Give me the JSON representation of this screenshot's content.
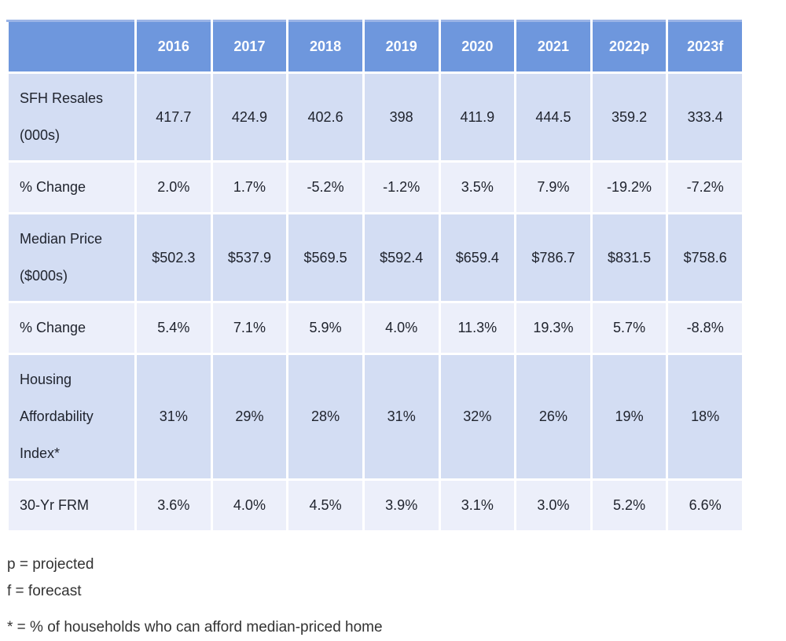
{
  "table": {
    "columns": [
      "",
      "2016",
      "2017",
      "2018",
      "2019",
      "2020",
      "2021",
      "2022p",
      "2023f"
    ],
    "rows": [
      {
        "label": "SFH Resales (000s)",
        "values": [
          "417.7",
          "424.9",
          "402.6",
          "398",
          "411.9",
          "444.5",
          "359.2",
          "333.4"
        ]
      },
      {
        "label": "% Change",
        "values": [
          "2.0%",
          "1.7%",
          "-5.2%",
          "-1.2%",
          "3.5%",
          "7.9%",
          "-19.2%",
          "-7.2%"
        ]
      },
      {
        "label": "Median Price ($000s)",
        "values": [
          "$502.3",
          "$537.9",
          "$569.5",
          "$592.4",
          "$659.4",
          "$786.7",
          "$831.5",
          "$758.6"
        ]
      },
      {
        "label": "% Change",
        "values": [
          "5.4%",
          "7.1%",
          "5.9%",
          "4.0%",
          "11.3%",
          "19.3%",
          "5.7%",
          "-8.8%"
        ]
      },
      {
        "label": "Housing Affordability Index*",
        "values": [
          "31%",
          "29%",
          "28%",
          "31%",
          "32%",
          "26%",
          "19%",
          "18%"
        ]
      },
      {
        "label": "30-Yr FRM",
        "values": [
          "3.6%",
          "4.0%",
          "4.5%",
          "3.9%",
          "3.1%",
          "3.0%",
          "5.2%",
          "6.6%"
        ]
      }
    ]
  },
  "footnotes": {
    "projected": "p = projected",
    "forecast": "f = forecast",
    "affordability": "* = % of households who can afford median-priced home"
  },
  "colors": {
    "header_bg": "#6e97dd",
    "header_top_highlight": "#9bb4e6",
    "header_text": "#ffffff",
    "row_band_dark": "#d3ddf3",
    "row_band_light": "#eceffa",
    "cell_text": "#20242e",
    "border": "#ffffff",
    "note_text": "#333333"
  }
}
